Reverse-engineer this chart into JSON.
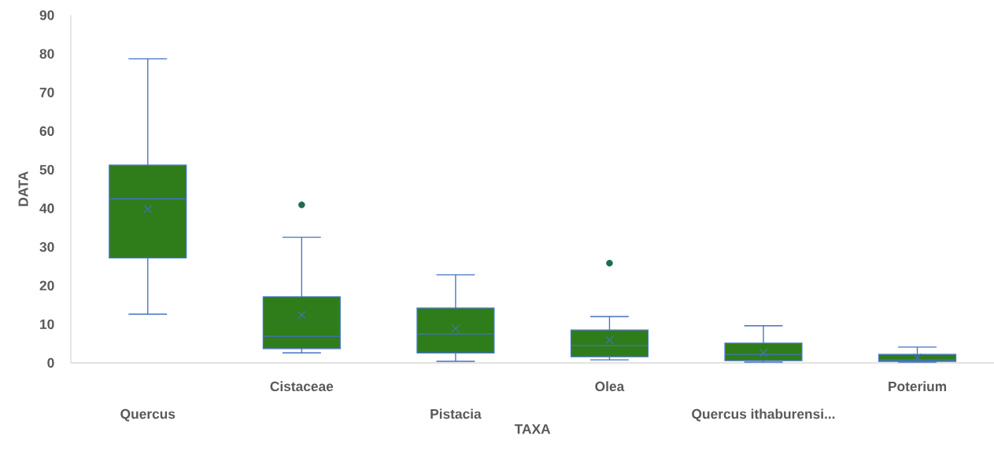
{
  "chart_data": {
    "type": "box",
    "xlabel": "TAXA",
    "ylabel": "DATA",
    "categories": [
      "Quercus",
      "Cistaceae",
      "Pistacia",
      "Olea",
      "Quercus ithaburensi...",
      "Poterium"
    ],
    "color": "#2e7d1a",
    "boxes": [
      {
        "low": 12.6,
        "q1": 27.2,
        "median": 42.5,
        "q3": 51.2,
        "high": 78.7,
        "mean": 39.8
      },
      {
        "low": 2.6,
        "q1": 3.7,
        "median": 6.9,
        "q3": 17.1,
        "high": 32.5,
        "mean": 12.4,
        "outliers": [
          40.9
        ]
      },
      {
        "low": 0.4,
        "q1": 2.6,
        "median": 7.5,
        "q3": 14.2,
        "high": 22.8,
        "mean": 8.9
      },
      {
        "low": 0.8,
        "q1": 1.6,
        "median": 4.5,
        "q3": 8.5,
        "high": 12,
        "mean": 5.9,
        "outliers": [
          25.8
        ]
      },
      {
        "low": 0.2,
        "q1": 0.6,
        "median": 2.2,
        "q3": 5.1,
        "high": 9.6,
        "mean": 2.6
      },
      {
        "low": 0.2,
        "q1": 0.4,
        "median": 0.8,
        "q3": 2.2,
        "high": 4.1,
        "mean": 1.4
      }
    ],
    "ylim": [
      0,
      90
    ],
    "yticks": [
      0,
      10,
      20,
      30,
      40,
      50,
      60,
      70,
      80,
      90
    ]
  }
}
